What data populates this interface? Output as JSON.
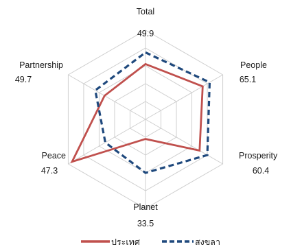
{
  "chart_data": {
    "type": "radar",
    "axes": [
      {
        "label": "Total",
        "value_label": "49.9"
      },
      {
        "label": "People",
        "value_label": "65.1"
      },
      {
        "label": "Prosperity",
        "value_label": "60.4"
      },
      {
        "label": "Planet",
        "value_label": "33.5"
      },
      {
        "label": "Peace",
        "value_label": "47.3"
      },
      {
        "label": "Partnership",
        "value_label": "49.7"
      }
    ],
    "rlim": [
      0,
      100
    ],
    "ring_levels": [
      20,
      40,
      60,
      80,
      100
    ],
    "grid": true,
    "legend_position": "bottom",
    "series": [
      {
        "name": "ประเทศ",
        "color": "#c0504d",
        "line_style": "solid",
        "values": [
          62,
          74,
          70,
          22,
          95,
          53
        ]
      },
      {
        "name": "สงขลา",
        "color": "#1f497d",
        "line_style": "dashed",
        "values": [
          75,
          83,
          80,
          60,
          52,
          65
        ]
      }
    ]
  }
}
